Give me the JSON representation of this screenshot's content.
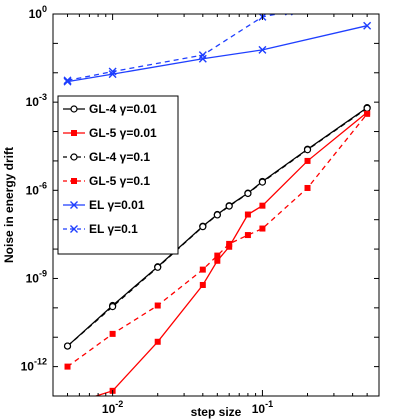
{
  "chart_data": {
    "type": "line",
    "title": "",
    "xlabel": "step size",
    "ylabel": "Noise in energy drift",
    "xscale": "log",
    "yscale": "log",
    "xlim": [
      0.004,
      0.6
    ],
    "ylim": [
      1e-13,
      1
    ],
    "x_ticks": [
      {
        "value": 0.01,
        "base": "10",
        "exp": "-2"
      },
      {
        "value": 0.1,
        "base": "10",
        "exp": "-1"
      }
    ],
    "y_ticks": [
      {
        "value": 1e-12,
        "base": "10",
        "exp": "-12"
      },
      {
        "value": 1e-09,
        "base": "10",
        "exp": "-9"
      },
      {
        "value": 1e-06,
        "base": "10",
        "exp": "-6"
      },
      {
        "value": 0.001,
        "base": "10",
        "exp": "-3"
      },
      {
        "value": 1,
        "base": "10",
        "exp": "0"
      }
    ],
    "grid": false,
    "legend_position": "left",
    "series": [
      {
        "name": "GL-4 γ=0.01",
        "color": "#000000",
        "dash": "solid",
        "marker": "circle",
        "x": [
          0.005,
          0.01,
          0.02,
          0.04,
          0.05,
          0.06,
          0.08,
          0.1,
          0.2,
          0.5
        ],
        "y": [
          5e-12,
          1.2e-10,
          2.5e-09,
          6e-08,
          1.5e-07,
          3e-07,
          8e-07,
          2e-06,
          2.5e-05,
          0.00065
        ]
      },
      {
        "name": "GL-5 γ=0.01",
        "color": "#ff0000",
        "dash": "solid",
        "marker": "square",
        "x": [
          0.005,
          0.01,
          0.02,
          0.04,
          0.05,
          0.06,
          0.08,
          0.1,
          0.2,
          0.5
        ],
        "y": [
          5e-14,
          1.5e-13,
          7e-12,
          6e-10,
          4e-09,
          1.2e-08,
          1.5e-07,
          3e-07,
          1e-05,
          0.00045
        ]
      },
      {
        "name": "GL-4 γ=0.1",
        "color": "#000000",
        "dash": "dashed",
        "marker": "circle",
        "x": [
          0.005,
          0.01,
          0.02,
          0.04,
          0.05,
          0.06,
          0.08,
          0.1,
          0.2,
          0.5
        ],
        "y": [
          5e-12,
          1.1e-10,
          2.4e-09,
          5.8e-08,
          1.45e-07,
          2.9e-07,
          7.8e-07,
          1.9e-06,
          2.4e-05,
          0.00062
        ]
      },
      {
        "name": "GL-5 γ=0.1",
        "color": "#ff0000",
        "dash": "dashed",
        "marker": "square",
        "x": [
          0.005,
          0.01,
          0.02,
          0.04,
          0.05,
          0.06,
          0.08,
          0.1,
          0.2,
          0.5
        ],
        "y": [
          1e-12,
          1.3e-11,
          1.2e-10,
          2e-09,
          6e-09,
          1.5e-08,
          3e-08,
          5e-08,
          1.2e-06,
          0.0004
        ]
      },
      {
        "name": "EL γ=0.01",
        "color": "#1f3fff",
        "dash": "solid",
        "marker": "x",
        "x": [
          0.005,
          0.01,
          0.04,
          0.1,
          0.5
        ],
        "y": [
          0.005,
          0.009,
          0.03,
          0.06,
          0.4
        ]
      },
      {
        "name": "EL γ=0.1",
        "color": "#1f3fff",
        "dash": "dashed",
        "marker": "x",
        "x": [
          0.005,
          0.01,
          0.04,
          0.1,
          0.15
        ],
        "y": [
          0.0055,
          0.011,
          0.04,
          0.8,
          1.2
        ]
      }
    ]
  }
}
